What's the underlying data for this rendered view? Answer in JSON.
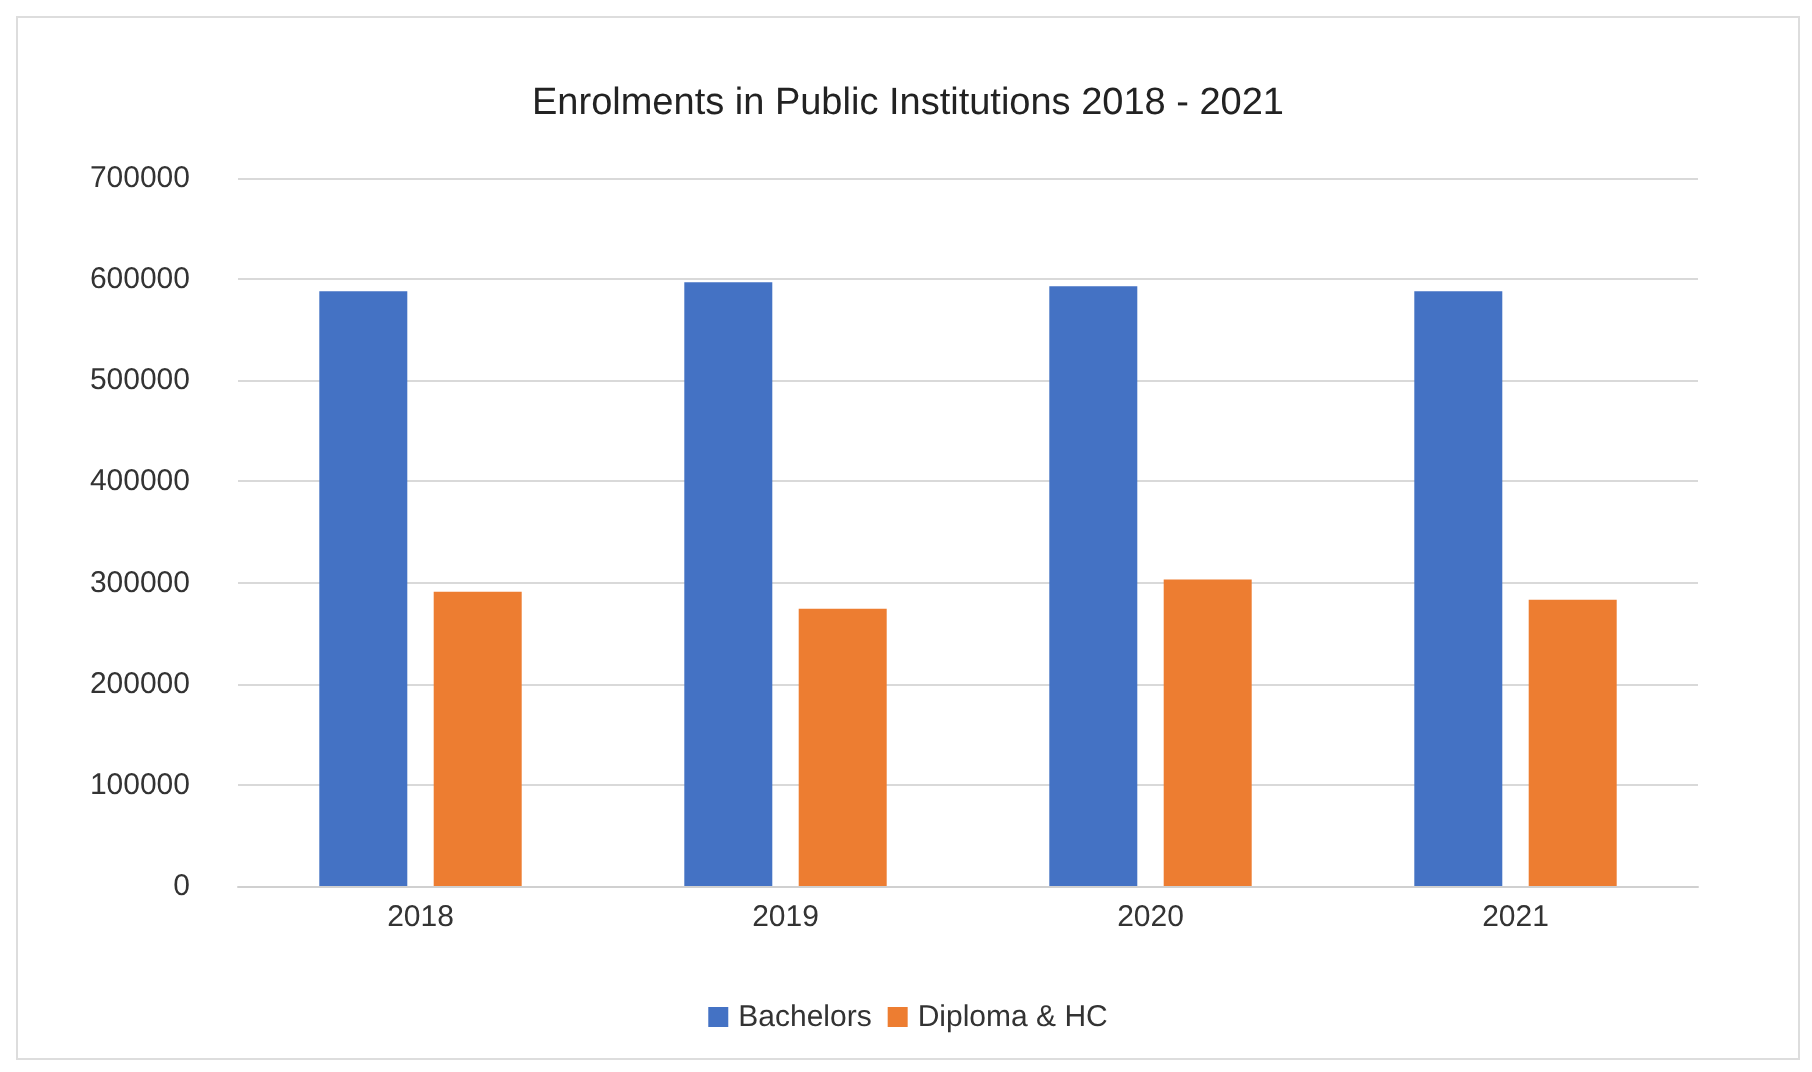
{
  "chart_data": {
    "type": "bar",
    "title": "Enrolments in Public Institutions 2018 - 2021",
    "categories": [
      "2018",
      "2019",
      "2020",
      "2021"
    ],
    "series": [
      {
        "name": "Bachelors",
        "color": "#4472c4",
        "values": [
          588000,
          597000,
          593000,
          588000
        ]
      },
      {
        "name": "Diploma & HC",
        "color": "#ed7d31",
        "values": [
          291000,
          274000,
          303000,
          283000
        ]
      }
    ],
    "ylim": [
      0,
      700000
    ],
    "yticks": [
      0,
      100000,
      200000,
      300000,
      400000,
      500000,
      600000,
      700000
    ],
    "grid": "y",
    "legend": "bottom"
  }
}
